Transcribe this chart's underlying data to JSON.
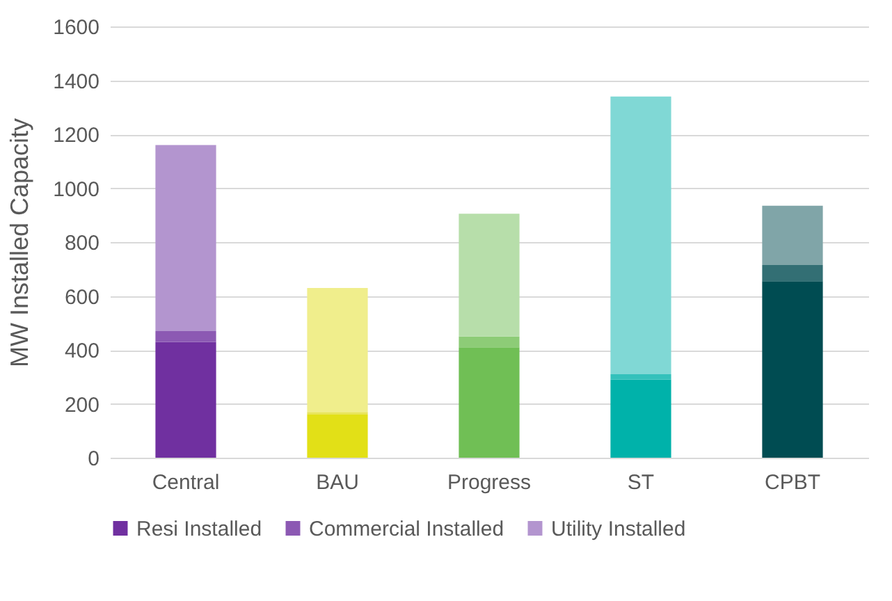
{
  "chart_data": {
    "type": "bar",
    "stacked": true,
    "ylabel": "MW Installed Capacity",
    "categories": [
      "Central",
      "BAU",
      "Progress",
      "ST",
      "CPBT"
    ],
    "series": [
      {
        "name": "Resi Installed",
        "color": "#7030a0",
        "colors": [
          "#7030a0",
          "#e2e017",
          "#70bf55",
          "#00b2aa",
          "#004c52"
        ],
        "values": [
          430,
          160,
          410,
          290,
          655
        ]
      },
      {
        "name": "Commercial Installed",
        "color": "#8c59b3",
        "colors": [
          "#8c59b3",
          "#e8e55a",
          "#8dcc77",
          "#33c1bb",
          "#336f74"
        ],
        "values": [
          40,
          10,
          40,
          20,
          60
        ]
      },
      {
        "name": "Utility Installed",
        "color": "#b395cf",
        "colors": [
          "#b395cf",
          "#f0ee8c",
          "#b7deaa",
          "#80d8d5",
          "#80a5a8"
        ],
        "values": [
          690,
          460,
          455,
          1030,
          220
        ]
      }
    ],
    "ylim": [
      0,
      1600
    ],
    "yticks": [
      0,
      200,
      400,
      600,
      800,
      1000,
      1200,
      1400,
      1600
    ],
    "grid": "y",
    "legend": "bottom"
  }
}
